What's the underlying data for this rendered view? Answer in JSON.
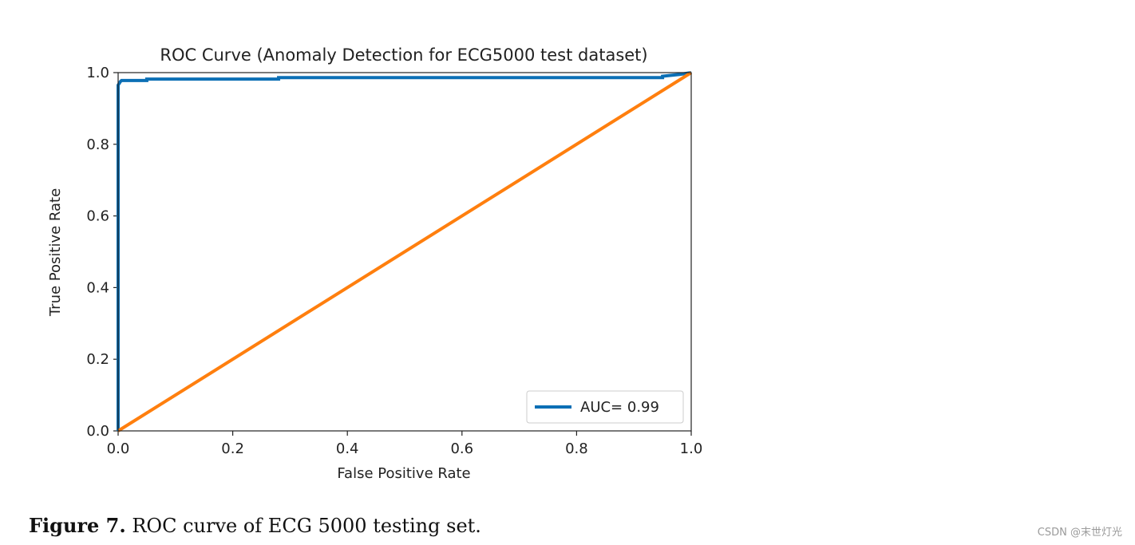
{
  "chart_data": {
    "type": "line",
    "title": "ROC Curve (Anomaly Detection for ECG5000 test dataset)",
    "xlabel": "False Positive Rate",
    "ylabel": "True Positive Rate",
    "xlim": [
      0.0,
      1.0
    ],
    "ylim": [
      0.0,
      1.0
    ],
    "xticks": [
      "0.0",
      "0.2",
      "0.4",
      "0.6",
      "0.8",
      "1.0"
    ],
    "yticks": [
      "0.0",
      "0.2",
      "0.4",
      "0.6",
      "0.8",
      "1.0"
    ],
    "grid": false,
    "legend_position": "lower-right",
    "series": [
      {
        "name": "AUC= 0.99",
        "color": "#0b6fb5",
        "x": [
          0.0,
          0.0,
          0.002,
          0.004,
          0.006,
          0.01,
          0.05,
          0.05,
          0.28,
          0.28,
          0.95,
          0.95,
          0.98,
          1.0
        ],
        "y": [
          0.0,
          0.965,
          0.97,
          0.975,
          0.978,
          0.978,
          0.978,
          0.982,
          0.982,
          0.986,
          0.986,
          0.99,
          0.995,
          1.0
        ]
      },
      {
        "color": "#ff7f0e",
        "x": [
          0.0,
          1.0
        ],
        "y": [
          0.0,
          1.0
        ]
      }
    ]
  },
  "caption": {
    "label": "Figure 7.",
    "text": " ROC curve of ECG 5000 testing set."
  },
  "watermark": "CSDN @末世灯光"
}
